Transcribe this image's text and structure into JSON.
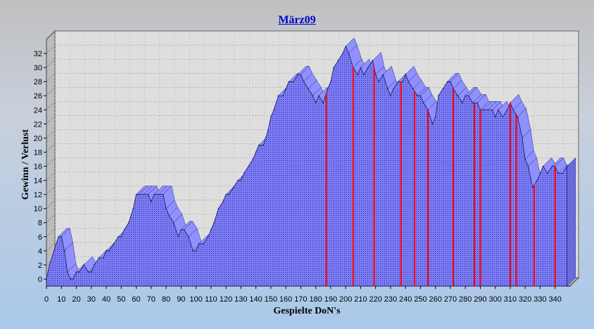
{
  "chart_data": {
    "type": "area",
    "title": "März09",
    "xlabel": "Gespielte DoN's",
    "ylabel": "Gewinn / Verlust",
    "xlim": [
      0,
      350
    ],
    "ylim": [
      -1,
      34
    ],
    "x_ticks": [
      0,
      10,
      20,
      30,
      40,
      50,
      60,
      70,
      80,
      90,
      100,
      110,
      120,
      130,
      140,
      150,
      160,
      170,
      180,
      190,
      200,
      210,
      220,
      230,
      240,
      250,
      260,
      270,
      280,
      290,
      300,
      310,
      320,
      330,
      340
    ],
    "y_ticks": [
      0,
      2,
      4,
      6,
      8,
      10,
      12,
      14,
      16,
      18,
      20,
      22,
      24,
      26,
      28,
      30,
      32
    ],
    "grid": true,
    "three_d": true,
    "colors": {
      "fill": "#7c7cf4",
      "top": "#9090ff",
      "outline": "#000000",
      "marker": "#ff0000",
      "title": "#0000cc"
    },
    "series": [
      {
        "x": [
          0,
          2,
          5,
          8,
          10,
          12,
          14,
          16,
          18,
          20,
          22,
          25,
          28,
          30,
          32,
          35,
          38,
          40,
          42,
          45,
          48,
          50,
          52,
          55,
          58,
          60,
          62,
          65,
          68,
          70,
          72,
          75,
          78,
          80,
          82,
          85,
          88,
          90,
          92,
          95,
          98,
          100,
          102,
          105,
          108,
          110,
          112,
          115,
          118,
          120,
          122,
          125,
          128,
          130,
          132,
          135,
          138,
          140,
          142,
          145,
          148,
          150,
          152,
          155,
          158,
          160,
          162,
          165,
          168,
          170,
          172,
          175,
          178,
          180,
          182,
          185,
          188,
          190,
          192,
          195,
          198,
          200,
          202,
          205,
          208,
          210,
          212,
          215,
          218,
          220,
          222,
          225,
          228,
          230,
          232,
          235,
          238,
          240,
          242,
          245,
          248,
          250,
          252,
          255,
          258,
          260,
          262,
          265,
          268,
          270,
          272,
          275,
          278,
          280,
          282,
          285,
          288,
          290,
          292,
          295,
          298,
          300,
          302,
          305,
          308,
          310,
          312,
          315,
          318,
          320,
          322,
          325,
          328,
          330,
          332,
          335,
          338,
          340,
          342,
          345,
          348
        ],
        "y": [
          0,
          2,
          4,
          6,
          6,
          4,
          1,
          0,
          0,
          1,
          1,
          2,
          1,
          1,
          2,
          3,
          3,
          4,
          4,
          5,
          6,
          6,
          7,
          8,
          10,
          12,
          12,
          12,
          12,
          11,
          12,
          12,
          12,
          10,
          9,
          8,
          6,
          7,
          7,
          6,
          4,
          4,
          5,
          5,
          6,
          7,
          8,
          10,
          11,
          12,
          12,
          13,
          14,
          14,
          15,
          16,
          17,
          18,
          19,
          19,
          21,
          23,
          24,
          26,
          26,
          27,
          28,
          28,
          29,
          29,
          28,
          27,
          26,
          25,
          26,
          25,
          27,
          28,
          30,
          31,
          32,
          33,
          32,
          30,
          29,
          30,
          29,
          30,
          31,
          29,
          28,
          29,
          27,
          26,
          27,
          28,
          28,
          29,
          28,
          27,
          26,
          26,
          25,
          24,
          22,
          23,
          26,
          27,
          28,
          28,
          27,
          26,
          25,
          26,
          26,
          25,
          25,
          24,
          24,
          24,
          24,
          23,
          24,
          23,
          24,
          25,
          24,
          23,
          20,
          17,
          16,
          13,
          14,
          15,
          16,
          15,
          16,
          16,
          15,
          15,
          16
        ]
      }
    ],
    "markers_x": [
      187,
      205,
      219,
      237,
      246,
      255,
      272,
      286,
      290,
      310,
      314,
      326,
      340
    ]
  }
}
